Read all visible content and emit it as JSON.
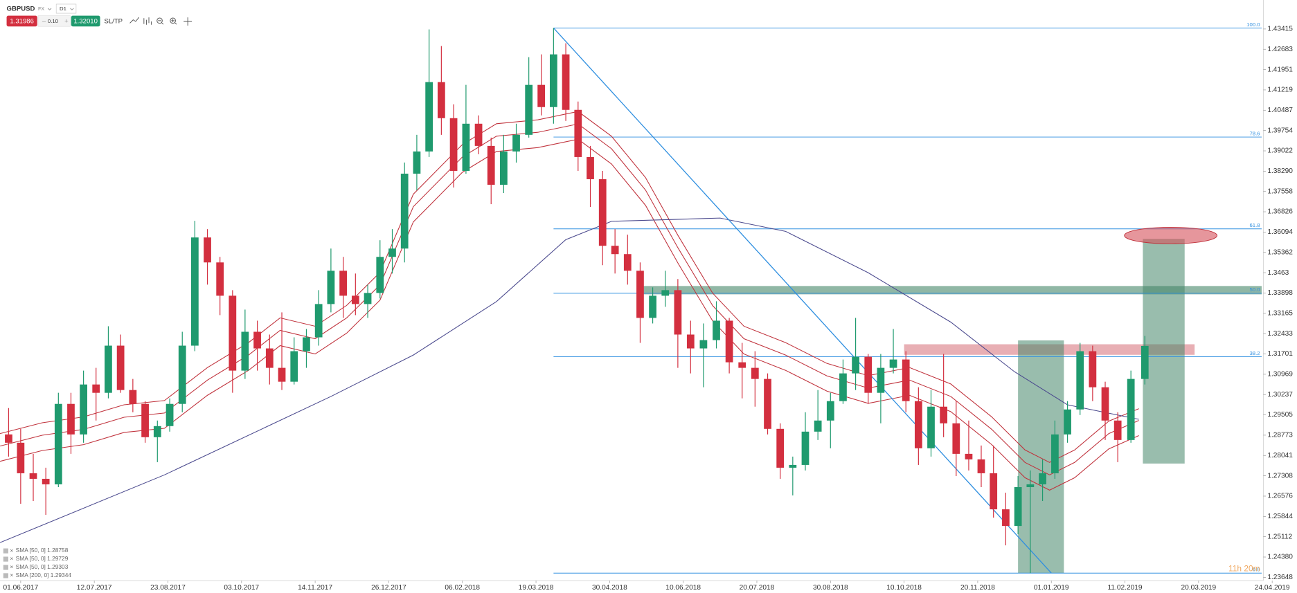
{
  "chart_data": {
    "type": "candlestick",
    "symbol": "GBPUSD",
    "market": "FX",
    "timeframe": "D1",
    "sell_price": "1.31986",
    "lot": "0.10",
    "buy_price": "1.32010",
    "sltp": "SL/TP",
    "countdown": "11h 20m",
    "up_color": "#1f9a6e",
    "down_color": "#d32f3f",
    "xlim": [
      "20.05.2017",
      "19.04.2019"
    ],
    "xticks": [
      "01.06.2017",
      "12.07.2017",
      "23.08.2017",
      "03.10.2017",
      "14.11.2017",
      "26.12.2017",
      "06.02.2018",
      "19.03.2018",
      "30.04.2018",
      "10.06.2018",
      "20.07.2018",
      "30.08.2018",
      "10.10.2018",
      "20.11.2018",
      "01.01.2019",
      "11.02.2019",
      "20.03.2019",
      "24.04.2019"
    ],
    "ylim": [
      1.2353,
      1.4446
    ],
    "yticks": [
      1.43415,
      1.42683,
      1.41951,
      1.41219,
      1.40487,
      1.39754,
      1.39022,
      {
        "value": 1.3829,
        "label": "1.38290"
      },
      1.37558,
      1.36826,
      1.36094,
      1.35362,
      1.3463,
      1.33898,
      1.33165,
      1.32433,
      1.31701,
      1.30969,
      1.30237,
      1.29505,
      1.28773,
      1.28041,
      1.27308,
      1.26576,
      1.25844,
      1.25112,
      {
        "value": 1.2438,
        "label": "1.24380"
      },
      1.23648
    ],
    "x": [
      "25.05.2017",
      "01.06.2017",
      "08.06.2017",
      "15.06.2017",
      "22.06.2017",
      "29.06.2017",
      "06.07.2017",
      "13.07.2017",
      "20.07.2017",
      "27.07.2017",
      "03.08.2017",
      "10.08.2017",
      "17.08.2017",
      "24.08.2017",
      "31.08.2017",
      "07.09.2017",
      "14.09.2017",
      "21.09.2017",
      "28.09.2017",
      "05.10.2017",
      "12.10.2017",
      "19.10.2017",
      "26.10.2017",
      "02.11.2017",
      "09.11.2017",
      "16.11.2017",
      "23.11.2017",
      "30.11.2017",
      "07.12.2017",
      "14.12.2017",
      "21.12.2017",
      "28.12.2017",
      "04.01.2018",
      "11.01.2018",
      "18.01.2018",
      "25.01.2018",
      "01.02.2018",
      "08.02.2018",
      "15.02.2018",
      "22.02.2018",
      "01.03.2018",
      "08.03.2018",
      "15.03.2018",
      "22.03.2018",
      "29.03.2018",
      "05.04.2018",
      "12.04.2018",
      "19.04.2018",
      "26.04.2018",
      "03.05.2018",
      "10.05.2018",
      "17.05.2018",
      "24.05.2018",
      "31.05.2018",
      "07.06.2018",
      "14.06.2018",
      "21.06.2018",
      "28.06.2018",
      "05.07.2018",
      "12.07.2018",
      "19.07.2018",
      "26.07.2018",
      "02.08.2018",
      "09.08.2018",
      "16.08.2018",
      "23.08.2018",
      "30.08.2018",
      "06.09.2018",
      "13.09.2018",
      "20.09.2018",
      "27.09.2018",
      "04.10.2018",
      "11.10.2018",
      "18.10.2018",
      "25.10.2018",
      "01.11.2018",
      "08.11.2018",
      "15.11.2018",
      "22.11.2018",
      "29.11.2018",
      "06.12.2018",
      "13.12.2018",
      "20.12.2018",
      "27.12.2018",
      "03.01.2019",
      "10.01.2019",
      "17.01.2019",
      "24.01.2019",
      "31.01.2019",
      "07.02.2019",
      "14.02.2019",
      "21.02.2019"
    ],
    "open": [
      1.288,
      1.285,
      1.274,
      1.272,
      1.27,
      1.299,
      1.288,
      1.306,
      1.303,
      1.32,
      1.304,
      1.299,
      1.287,
      1.291,
      1.299,
      1.32,
      1.359,
      1.35,
      1.338,
      1.311,
      1.325,
      1.319,
      1.312,
      1.307,
      1.318,
      1.323,
      1.335,
      1.347,
      1.338,
      1.335,
      1.339,
      1.352,
      1.355,
      1.382,
      1.39,
      1.415,
      1.402,
      1.383,
      1.4,
      1.392,
      1.378,
      1.39,
      1.396,
      1.414,
      1.406,
      1.425,
      1.405,
      1.388,
      1.38,
      1.356,
      1.353,
      1.347,
      1.33,
      1.338,
      1.34,
      1.324,
      1.319,
      1.322,
      1.329,
      1.314,
      1.312,
      1.308,
      1.29,
      1.276,
      1.277,
      1.289,
      1.293,
      1.3,
      1.31,
      1.316,
      1.303,
      1.312,
      1.315,
      1.3,
      1.283,
      1.298,
      1.292,
      1.281,
      1.279,
      1.274,
      1.261,
      1.255,
      1.269,
      1.27,
      1.274,
      1.288,
      1.297,
      1.318,
      1.305,
      1.293,
      1.286,
      1.308
    ],
    "high": [
      1.2975,
      1.29,
      1.281,
      1.276,
      1.303,
      1.303,
      1.311,
      1.312,
      1.327,
      1.324,
      1.308,
      1.3,
      1.293,
      1.301,
      1.325,
      1.365,
      1.362,
      1.352,
      1.34,
      1.333,
      1.329,
      1.324,
      1.332,
      1.323,
      1.326,
      1.34,
      1.355,
      1.352,
      1.346,
      1.342,
      1.358,
      1.362,
      1.386,
      1.396,
      1.434,
      1.428,
      1.407,
      1.414,
      1.403,
      1.395,
      1.396,
      1.4,
      1.424,
      1.425,
      1.4345,
      1.429,
      1.408,
      1.392,
      1.383,
      1.362,
      1.36,
      1.35,
      1.341,
      1.347,
      1.344,
      1.329,
      1.328,
      1.336,
      1.33,
      1.321,
      1.318,
      1.31,
      1.292,
      1.28,
      1.296,
      1.304,
      1.303,
      1.315,
      1.33,
      1.317,
      1.317,
      1.326,
      1.318,
      1.305,
      1.304,
      1.317,
      1.3,
      1.293,
      1.284,
      1.284,
      1.267,
      1.273,
      1.275,
      1.279,
      1.293,
      1.3,
      1.321,
      1.32,
      1.307,
      1.296,
      1.311,
      1.3235
    ],
    "low": [
      1.28,
      1.263,
      1.264,
      1.259,
      1.269,
      1.281,
      1.285,
      1.293,
      1.301,
      1.303,
      1.296,
      1.285,
      1.278,
      1.289,
      1.296,
      1.318,
      1.342,
      1.331,
      1.303,
      1.308,
      1.311,
      1.306,
      1.304,
      1.306,
      1.312,
      1.32,
      1.332,
      1.33,
      1.331,
      1.33,
      1.337,
      1.346,
      1.35,
      1.376,
      1.388,
      1.396,
      1.377,
      1.382,
      1.389,
      1.371,
      1.375,
      1.386,
      1.395,
      1.403,
      1.4,
      1.401,
      1.383,
      1.37,
      1.349,
      1.346,
      1.342,
      1.321,
      1.328,
      1.334,
      1.312,
      1.31,
      1.305,
      1.319,
      1.31,
      1.301,
      1.298,
      1.288,
      1.272,
      1.266,
      1.275,
      1.286,
      1.283,
      1.299,
      1.304,
      1.299,
      1.292,
      1.31,
      1.296,
      1.277,
      1.28,
      1.287,
      1.273,
      1.275,
      1.269,
      1.258,
      1.248,
      1.252,
      1.238,
      1.264,
      1.272,
      1.285,
      1.295,
      1.3,
      1.286,
      1.278,
      1.285,
      1.306
    ],
    "close": [
      1.285,
      1.274,
      1.272,
      1.27,
      1.299,
      1.288,
      1.306,
      1.303,
      1.32,
      1.304,
      1.299,
      1.287,
      1.291,
      1.299,
      1.32,
      1.359,
      1.35,
      1.338,
      1.311,
      1.325,
      1.319,
      1.312,
      1.307,
      1.318,
      1.323,
      1.335,
      1.347,
      1.338,
      1.335,
      1.339,
      1.352,
      1.355,
      1.382,
      1.39,
      1.415,
      1.402,
      1.383,
      1.4,
      1.392,
      1.378,
      1.39,
      1.396,
      1.414,
      1.406,
      1.425,
      1.405,
      1.388,
      1.38,
      1.356,
      1.353,
      1.347,
      1.33,
      1.338,
      1.34,
      1.324,
      1.319,
      1.322,
      1.329,
      1.314,
      1.312,
      1.308,
      1.29,
      1.276,
      1.277,
      1.289,
      1.293,
      1.3,
      1.31,
      1.316,
      1.303,
      1.312,
      1.315,
      1.3,
      1.283,
      1.298,
      1.292,
      1.281,
      1.279,
      1.274,
      1.261,
      1.255,
      1.269,
      1.27,
      1.274,
      1.288,
      1.297,
      1.318,
      1.305,
      1.293,
      1.286,
      1.308,
      1.3199
    ],
    "overlays": [
      {
        "name": "SMA [50, 0]",
        "last": 1.28758,
        "color": "#c0323c",
        "x": [
          "20.05.2017",
          "13.06.2017",
          "06.07.2017",
          "29.07.2017",
          "21.08.2017",
          "14.09.2017",
          "07.10.2017",
          "25.10.2017",
          "14.11.2017",
          "02.12.2017",
          "21.12.2017",
          "09.01.2018",
          "06.02.2018",
          "25.02.2018",
          "20.03.2018",
          "12.04.2018",
          "01.05.2018",
          "20.05.2018",
          "07.06.2018",
          "26.06.2018",
          "13.07.2018",
          "05.08.2018",
          "28.08.2018",
          "20.09.2018",
          "13.10.2018",
          "05.11.2018",
          "28.11.2018",
          "17.12.2018",
          "31.12.2018",
          "14.01.2019",
          "02.02.2019",
          "18.02.2019"
        ],
        "values": [
          1.2783,
          1.2822,
          1.2843,
          1.2887,
          1.2902,
          1.3021,
          1.3111,
          1.32,
          1.317,
          1.3245,
          1.3364,
          1.3646,
          1.3825,
          1.39,
          1.3914,
          1.3944,
          1.3855,
          1.3706,
          1.3498,
          1.3289,
          1.317,
          1.3111,
          1.3036,
          1.2992,
          1.3021,
          1.2962,
          1.2843,
          1.2724,
          1.2679,
          1.2724,
          1.2828,
          1.28758
        ]
      },
      {
        "name": "SMA [50, 0]",
        "last": 1.29729,
        "color": "#c0323c",
        "x": [
          "20.05.2017",
          "13.06.2017",
          "06.07.2017",
          "29.07.2017",
          "21.08.2017",
          "14.09.2017",
          "07.10.2017",
          "25.10.2017",
          "14.11.2017",
          "02.12.2017",
          "21.12.2017",
          "09.01.2018",
          "06.02.2018",
          "25.02.2018",
          "20.03.2018",
          "12.04.2018",
          "01.05.2018",
          "20.05.2018",
          "07.06.2018",
          "26.06.2018",
          "13.07.2018",
          "05.08.2018",
          "28.08.2018",
          "20.09.2018",
          "13.10.2018",
          "05.11.2018",
          "28.11.2018",
          "17.12.2018",
          "31.12.2018",
          "14.01.2019",
          "02.02.2019",
          "18.02.2019"
        ],
        "values": [
          1.2883,
          1.2922,
          1.2943,
          1.2987,
          1.3002,
          1.3121,
          1.3211,
          1.33,
          1.327,
          1.3345,
          1.3464,
          1.3746,
          1.3925,
          1.4,
          1.4014,
          1.4044,
          1.3955,
          1.3806,
          1.3598,
          1.3389,
          1.327,
          1.3211,
          1.3136,
          1.3092,
          1.3121,
          1.3062,
          1.2943,
          1.2824,
          1.2779,
          1.2824,
          1.2928,
          1.29729
        ]
      },
      {
        "name": "SMA [50, 0]",
        "last": 1.29303,
        "color": "#c0323c",
        "x": [
          "20.05.2017",
          "13.06.2017",
          "06.07.2017",
          "29.07.2017",
          "21.08.2017",
          "14.09.2017",
          "07.10.2017",
          "25.10.2017",
          "14.11.2017",
          "02.12.2017",
          "21.12.2017",
          "09.01.2018",
          "06.02.2018",
          "25.02.2018",
          "20.03.2018",
          "12.04.2018",
          "01.05.2018",
          "20.05.2018",
          "07.06.2018",
          "26.06.2018",
          "13.07.2018",
          "05.08.2018",
          "28.08.2018",
          "20.09.2018",
          "13.10.2018",
          "05.11.2018",
          "28.11.2018",
          "17.12.2018",
          "31.12.2018",
          "14.01.2019",
          "02.02.2019",
          "18.02.2019"
        ],
        "values": [
          1.2838,
          1.2877,
          1.2898,
          1.2942,
          1.2957,
          1.3076,
          1.3166,
          1.3255,
          1.3225,
          1.33,
          1.3419,
          1.3701,
          1.388,
          1.3955,
          1.3969,
          1.3999,
          1.391,
          1.3761,
          1.3553,
          1.3344,
          1.3225,
          1.3166,
          1.3091,
          1.3047,
          1.3076,
          1.3017,
          1.2898,
          1.2779,
          1.2734,
          1.2779,
          1.2883,
          1.29303
        ]
      },
      {
        "name": "SMA [200, 0]",
        "last": 1.29344,
        "color": "#4b4a8e",
        "x": [
          "20.05.2017",
          "21.08.2017",
          "23.11.2017",
          "09.01.2018",
          "25.02.2018",
          "05.04.2018",
          "01.05.2018",
          "30.06.2018",
          "05.08.2018",
          "20.09.2018",
          "05.11.2018",
          "11.12.2018",
          "10.01.2019",
          "18.02.2019"
        ],
        "values": [
          1.249,
          1.2734,
          1.3017,
          1.3166,
          1.3359,
          1.3582,
          1.3648,
          1.366,
          1.3612,
          1.3463,
          1.3285,
          1.3106,
          1.2987,
          1.29344
        ]
      }
    ],
    "fibonacci": {
      "color": "#2f8fe0",
      "x": [
        "29.03.2018",
        "19.04.2019"
      ],
      "levels": [
        {
          "label": "100.0",
          "value": 1.4345
        },
        {
          "label": "78.6",
          "value": 1.3952
        },
        {
          "label": "61.8",
          "value": 1.3621
        },
        {
          "label": "50.0",
          "value": 1.3389
        },
        {
          "label": "38.2",
          "value": 1.316
        },
        {
          "label": "0.0",
          "value": 1.238
        }
      ]
    },
    "trendline": {
      "color": "#2f8fe0",
      "x": [
        "29.03.2018",
        "01.01.2019"
      ],
      "values": [
        1.4345,
        1.238
      ]
    },
    "zones": [
      {
        "color": "rgba(70,135,105,0.6)",
        "x": [
          "17.05.2018",
          "19.04.2019"
        ],
        "values": [
          1.3385,
          1.3415
        ]
      },
      {
        "color": "rgba(214,110,118,0.55)",
        "x": [
          "10.10.2018",
          "18.03.2019"
        ],
        "values": [
          1.3167,
          1.3205
        ]
      },
      {
        "color": "rgba(70,135,105,0.55)",
        "x": [
          "13.12.2018",
          "08.01.2019"
        ],
        "values": [
          1.238,
          1.3219
        ]
      },
      {
        "color": "rgba(70,135,105,0.55)",
        "x": [
          "20.02.2019",
          "13.03.2019"
        ],
        "values": [
          1.2775,
          1.3585
        ]
      }
    ],
    "target": {
      "color": "rgba(214,80,90,0.6)",
      "x": "06.03.2019",
      "value": 1.3597
    }
  }
}
